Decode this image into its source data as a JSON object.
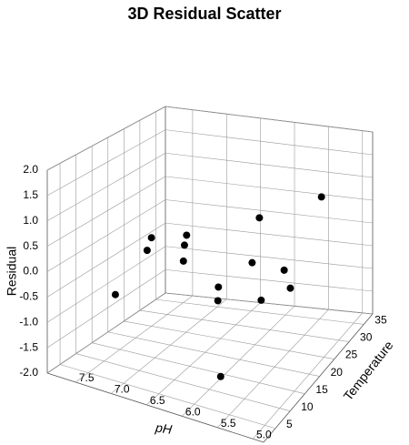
{
  "chart_data": {
    "type": "scatter3d",
    "title": "3D Residual Scatter",
    "xlabel": "pH",
    "ylabel": "Temperature",
    "zlabel": "Residual",
    "x": [
      7.77,
      7.25,
      6.98,
      6.91,
      6.61,
      6.3,
      6.45,
      5.97,
      5.93,
      5.67,
      6.29,
      6.35,
      5.66,
      5.25,
      5.44
    ],
    "y": [
      19.5,
      19.5,
      12.1,
      23.2,
      15.8,
      8.4,
      23.2,
      12.1,
      12.1,
      19.5,
      30.6,
      34.3,
      26.9,
      19.5,
      34.3
    ],
    "z": [
      -1.17,
      0.16,
      0.33,
      0.14,
      0.39,
      0.55,
      -0.81,
      -0.32,
      -1.84,
      -0.64,
      -0.67,
      0.07,
      -0.46,
      -0.26,
      0.7
    ],
    "color": "#000000",
    "xlim": [
      4.85,
      7.9
    ],
    "ylim": [
      1,
      38
    ],
    "zlim": [
      -2,
      2
    ],
    "xticks": [
      {
        "value": 5,
        "label": "5.0"
      },
      5.5,
      {
        "value": 6,
        "label": "6.0"
      },
      6.5,
      {
        "value": 7,
        "label": "7.0"
      },
      7.5
    ],
    "yticks": [
      5,
      10,
      15,
      20,
      25,
      30,
      35
    ],
    "zticks": [
      {
        "value": -2,
        "label": "-2.0"
      },
      -1.5,
      {
        "value": -1,
        "label": "-1.0"
      },
      -0.5,
      {
        "value": 0,
        "label": "0.0"
      },
      0.5,
      {
        "value": 1,
        "label": "1.0"
      },
      1.5,
      {
        "value": 2,
        "label": "2.0"
      }
    ],
    "grid": true
  }
}
